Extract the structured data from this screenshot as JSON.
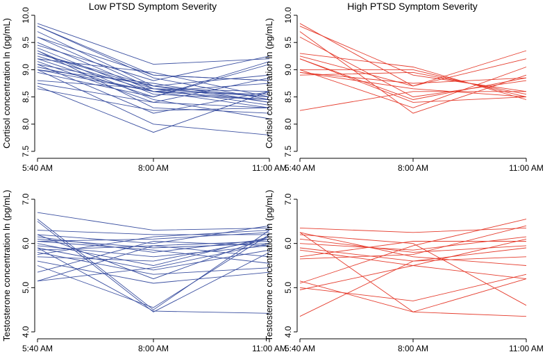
{
  "chart_data": [
    {
      "type": "line",
      "panel": "top-left",
      "title": "Low PTSD Symptom Severity",
      "xlabel": "",
      "ylabel": "Cortisol concentration ln (pg/mL)",
      "categories": [
        "5:40 AM",
        "8:00 AM",
        "11:00 AM"
      ],
      "ylim": [
        7.5,
        10.0
      ],
      "yticks": [
        "7.5",
        "8.0",
        "8.5",
        "9.0",
        "9.5",
        "10.0"
      ],
      "color": "#3a4fa0",
      "series": [
        {
          "values": [
            9.85,
            9.1,
            9.2
          ]
        },
        {
          "values": [
            9.8,
            8.9,
            8.8
          ]
        },
        {
          "values": [
            9.7,
            8.7,
            8.4
          ]
        },
        {
          "values": [
            9.6,
            8.65,
            8.5
          ]
        },
        {
          "values": [
            9.5,
            8.6,
            8.3
          ]
        },
        {
          "values": [
            9.45,
            8.8,
            9.25
          ]
        },
        {
          "values": [
            9.4,
            8.55,
            8.45
          ]
        },
        {
          "values": [
            9.35,
            8.3,
            8.2
          ]
        },
        {
          "values": [
            9.3,
            8.7,
            8.9
          ]
        },
        {
          "values": [
            9.3,
            8.65,
            8.35
          ]
        },
        {
          "values": [
            9.25,
            8.6,
            8.55
          ]
        },
        {
          "values": [
            9.2,
            8.5,
            9.15
          ]
        },
        {
          "values": [
            9.2,
            8.95,
            8.5
          ]
        },
        {
          "values": [
            9.15,
            8.4,
            8.3
          ]
        },
        {
          "values": [
            9.1,
            8.2,
            8.6
          ]
        },
        {
          "values": [
            9.1,
            8.7,
            8.5
          ]
        },
        {
          "values": [
            9.05,
            8.6,
            8.75
          ]
        },
        {
          "values": [
            9.0,
            8.0,
            7.8
          ]
        },
        {
          "values": [
            9.0,
            8.75,
            8.4
          ]
        },
        {
          "values": [
            8.95,
            8.5,
            9.1
          ]
        },
        {
          "values": [
            8.8,
            8.65,
            8.6
          ]
        },
        {
          "values": [
            8.75,
            8.4,
            8.85
          ]
        },
        {
          "values": [
            8.7,
            7.85,
            8.6
          ]
        },
        {
          "values": [
            8.65,
            8.25,
            8.3
          ]
        },
        {
          "values": [
            9.6,
            8.9,
            8.8
          ]
        },
        {
          "values": [
            9.35,
            8.45,
            8.1
          ]
        },
        {
          "values": [
            9.0,
            8.6,
            8.45
          ]
        },
        {
          "values": [
            9.8,
            8.85,
            8.45
          ]
        }
      ]
    },
    {
      "type": "line",
      "panel": "top-right",
      "title": "High PTSD Symptom Severity",
      "xlabel": "",
      "ylabel": "Cortisol concentration ln (pg/mL)",
      "categories": [
        "5:40 AM",
        "8:00 AM",
        "11:00 AM"
      ],
      "ylim": [
        7.5,
        10.0
      ],
      "yticks": [
        "7.5",
        "8.0",
        "8.5",
        "9.0",
        "9.5",
        "10.0"
      ],
      "color": "#e53b2c",
      "series": [
        {
          "values": [
            9.85,
            8.7,
            9.2
          ]
        },
        {
          "values": [
            9.8,
            8.9,
            8.6
          ]
        },
        {
          "values": [
            9.7,
            8.2,
            8.9
          ]
        },
        {
          "values": [
            9.6,
            8.5,
            8.8
          ]
        },
        {
          "values": [
            9.3,
            9.05,
            8.45
          ]
        },
        {
          "values": [
            9.25,
            8.7,
            9.35
          ]
        },
        {
          "values": [
            9.2,
            8.4,
            8.5
          ]
        },
        {
          "values": [
            9.0,
            8.3,
            9.05
          ]
        },
        {
          "values": [
            8.95,
            8.75,
            8.85
          ]
        },
        {
          "values": [
            8.95,
            8.65,
            8.5
          ]
        },
        {
          "values": [
            8.9,
            8.95,
            8.55
          ]
        },
        {
          "values": [
            8.25,
            8.6,
            8.6
          ]
        },
        {
          "values": [
            9.0,
            9.0,
            8.5
          ]
        },
        {
          "values": [
            9.2,
            8.45,
            8.85
          ]
        }
      ]
    },
    {
      "type": "line",
      "panel": "bottom-left",
      "title": "",
      "xlabel": "",
      "ylabel": "Testosterone concentration ln (pg/mL)",
      "categories": [
        "5:40 AM",
        "8:00 AM",
        "11:00 AM"
      ],
      "ylim": [
        4.0,
        7.0
      ],
      "yticks": [
        "4.0",
        "5.0",
        "6.0",
        "7.0"
      ],
      "color": "#3a4fa0",
      "series": [
        {
          "values": [
            6.7,
            6.3,
            6.35
          ]
        },
        {
          "values": [
            6.55,
            4.5,
            6.3
          ]
        },
        {
          "values": [
            6.5,
            4.45,
            5.8
          ]
        },
        {
          "values": [
            6.3,
            6.2,
            6.2
          ]
        },
        {
          "values": [
            6.2,
            6.0,
            6.4
          ]
        },
        {
          "values": [
            6.15,
            5.8,
            6.1
          ]
        },
        {
          "values": [
            6.1,
            5.9,
            6.0
          ]
        },
        {
          "values": [
            6.05,
            6.1,
            6.25
          ]
        },
        {
          "values": [
            6.0,
            5.5,
            6.15
          ]
        },
        {
          "values": [
            5.95,
            5.7,
            5.95
          ]
        },
        {
          "values": [
            5.9,
            5.4,
            5.85
          ]
        },
        {
          "values": [
            5.85,
            5.95,
            6.05
          ]
        },
        {
          "values": [
            5.8,
            5.3,
            5.45
          ]
        },
        {
          "values": [
            5.7,
            5.6,
            6.1
          ]
        },
        {
          "values": [
            5.6,
            5.1,
            5.35
          ]
        },
        {
          "values": [
            5.5,
            4.55,
            6.2
          ]
        },
        {
          "values": [
            5.35,
            6.05,
            5.95
          ]
        },
        {
          "values": [
            5.15,
            5.95,
            5.7
          ]
        },
        {
          "values": [
            5.15,
            5.45,
            6.0
          ]
        },
        {
          "values": [
            5.9,
            4.47,
            4.42
          ]
        },
        {
          "values": [
            6.2,
            5.2,
            6.15
          ]
        },
        {
          "values": [
            6.05,
            5.85,
            5.55
          ]
        },
        {
          "values": [
            5.75,
            6.15,
            6.3
          ]
        }
      ]
    },
    {
      "type": "line",
      "panel": "bottom-right",
      "title": "",
      "xlabel": "",
      "ylabel": "Testosterone concentration ln (pg/mL)",
      "categories": [
        "5:40 AM",
        "8:00 AM",
        "11:00 AM"
      ],
      "ylim": [
        4.0,
        7.0
      ],
      "yticks": [
        "4.0",
        "5.0",
        "6.0",
        "7.0"
      ],
      "color": "#e53b2c",
      "series": [
        {
          "values": [
            6.35,
            6.25,
            6.35
          ]
        },
        {
          "values": [
            6.25,
            5.7,
            5.5
          ]
        },
        {
          "values": [
            6.2,
            6.0,
            4.6
          ]
        },
        {
          "values": [
            6.1,
            5.8,
            5.95
          ]
        },
        {
          "values": [
            6.0,
            5.85,
            6.15
          ]
        },
        {
          "values": [
            5.9,
            5.6,
            5.7
          ]
        },
        {
          "values": [
            5.85,
            5.5,
            5.2
          ]
        },
        {
          "values": [
            5.7,
            6.05,
            6.05
          ]
        },
        {
          "values": [
            5.65,
            5.75,
            6.4
          ]
        },
        {
          "values": [
            5.15,
            4.45,
            4.35
          ]
        },
        {
          "values": [
            5.1,
            5.95,
            6.55
          ]
        },
        {
          "values": [
            5.0,
            4.7,
            5.3
          ]
        },
        {
          "values": [
            4.95,
            5.5,
            6.1
          ]
        },
        {
          "values": [
            4.35,
            5.6,
            5.9
          ]
        },
        {
          "values": [
            6.25,
            4.45,
            5.2
          ]
        }
      ]
    }
  ]
}
